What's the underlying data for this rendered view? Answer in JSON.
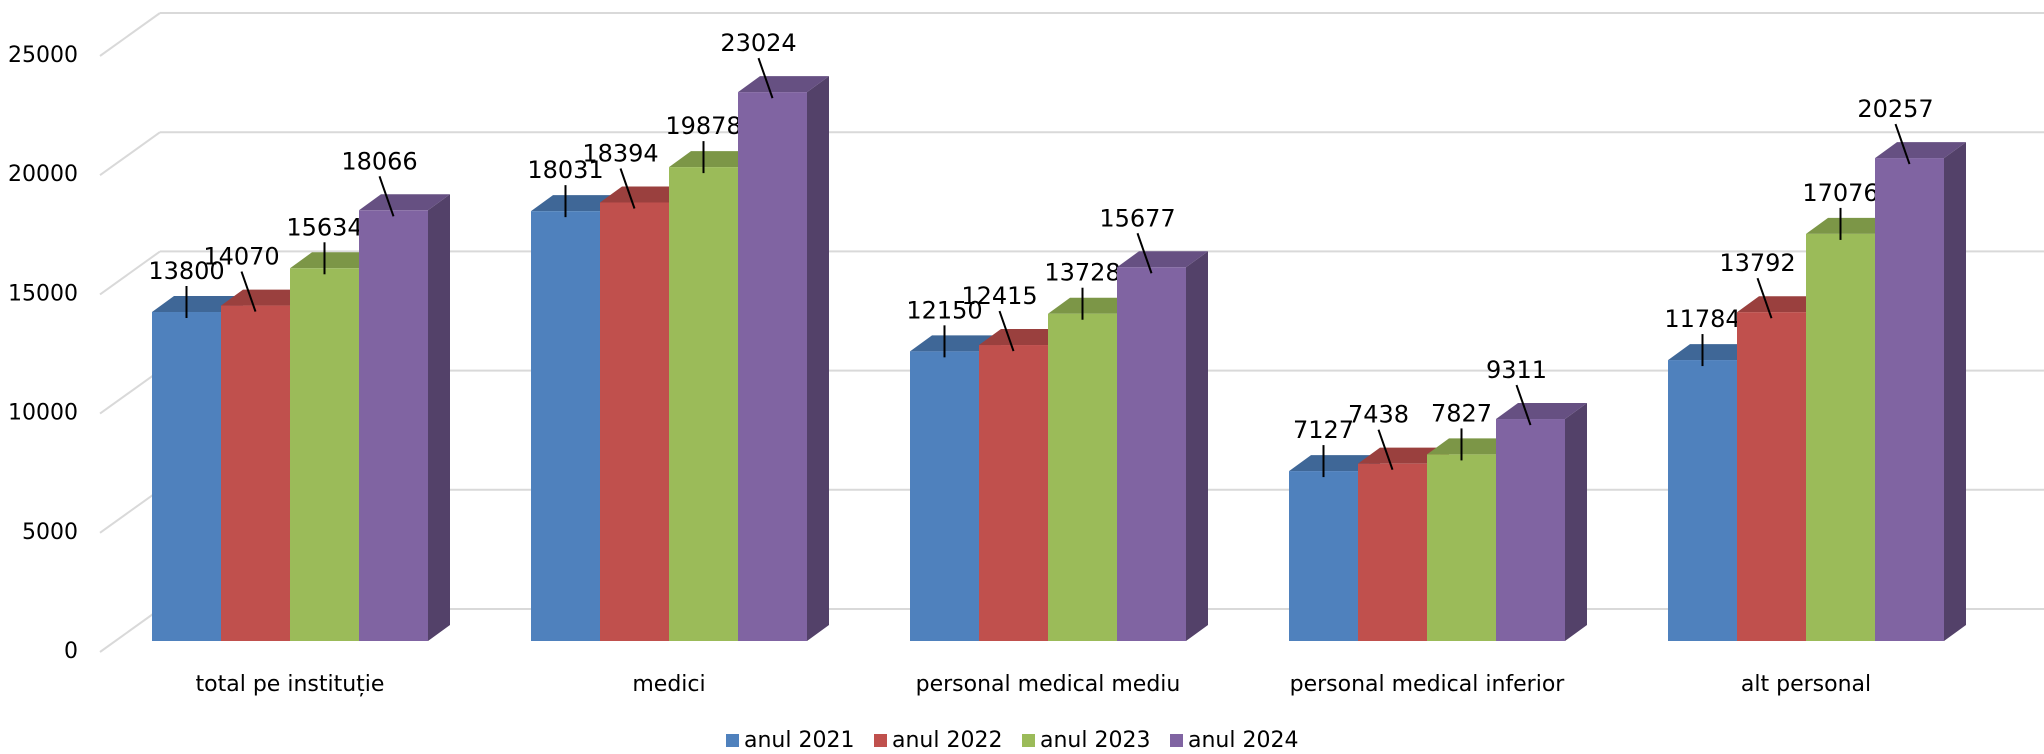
{
  "chart_data": {
    "type": "bar3d",
    "categories": [
      "total pe instituție",
      "medici",
      "personal medical mediu",
      "personal medical inferior",
      "alt personal"
    ],
    "series": [
      {
        "name": "anul 2021",
        "color": "#4f81bd",
        "values": [
          13800,
          18031,
          12150,
          7127,
          11784
        ]
      },
      {
        "name": "anul 2022",
        "color": "#c0504d",
        "values": [
          14070,
          18394,
          12415,
          7438,
          13792
        ]
      },
      {
        "name": "anul 2023",
        "color": "#9bbb59",
        "values": [
          15634,
          19878,
          13728,
          7827,
          17076
        ]
      },
      {
        "name": "anul 2024",
        "color": "#8064a2",
        "values": [
          18066,
          23024,
          15677,
          9311,
          20257
        ]
      }
    ],
    "ylim": [
      0,
      25000
    ],
    "yticks": [
      0,
      5000,
      10000,
      15000,
      20000,
      25000
    ],
    "grid": true,
    "legend": "bottom"
  }
}
